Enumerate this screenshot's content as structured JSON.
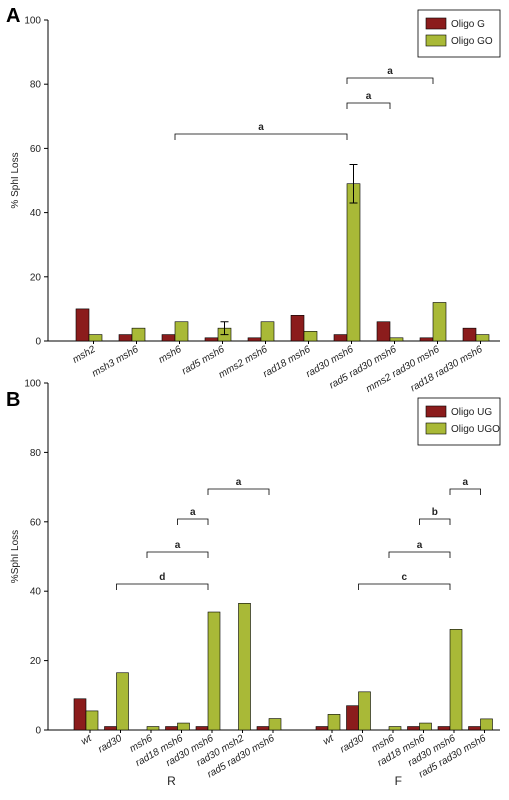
{
  "chart_data": [
    {
      "type": "bar",
      "panel_label": "A",
      "y_label": "% SphI Loss",
      "categories": [
        "msh2",
        "msh3 msh6",
        "msh6",
        "rad5 msh6",
        "mms2 msh6",
        "rad18 msh6",
        "rad30 msh6",
        "rad5 rad30 msh6",
        "mms2 rad30 msh6",
        "rad18 rad30 msh6"
      ],
      "series": [
        {
          "name": "Oligo G",
          "color": "#8b1c1c",
          "values": [
            10,
            2,
            2,
            1,
            1,
            8,
            2,
            6,
            1,
            4
          ]
        },
        {
          "name": "Oligo GO",
          "color": "#a9b937",
          "values": [
            2,
            4,
            6,
            4,
            6,
            3,
            49,
            1,
            12,
            2
          ],
          "errors": [
            null,
            null,
            null,
            2,
            null,
            null,
            6,
            null,
            null,
            null
          ]
        }
      ],
      "ylim": [
        0,
        100
      ],
      "yticks": [
        0,
        20,
        40,
        60,
        80,
        100
      ],
      "legend": "upper right",
      "annotations": [
        "a",
        "a",
        "a"
      ]
    },
    {
      "type": "bar",
      "panel_label": "B",
      "y_label": "%SphI Loss",
      "groups": [
        {
          "label": "R",
          "categories": [
            "wt",
            "rad30",
            "msh6",
            "rad18 msh6",
            "rad30 msh6",
            "rad30 msh2",
            "rad5 rad30 msh6"
          ]
        },
        {
          "label": "F",
          "categories": [
            "wt",
            "rad30",
            "msh6",
            "rad18 msh6",
            "rad30 msh6",
            "rad5 rad30 msh6"
          ]
        }
      ],
      "series": [
        {
          "name": "Oligo UG",
          "color": "#8b1c1c",
          "values": [
            9,
            1,
            0,
            1,
            1,
            0,
            1,
            1,
            7,
            0,
            1,
            1,
            1
          ]
        },
        {
          "name": "Oligo UGO",
          "color": "#a9b937",
          "values": [
            5.5,
            16.5,
            1,
            2,
            34,
            36.5,
            3.3,
            4.5,
            11,
            1,
            2,
            29,
            3.2
          ]
        }
      ],
      "ylim": [
        0,
        100
      ],
      "yticks": [
        0,
        20,
        40,
        60,
        80,
        100
      ],
      "legend": "upper right",
      "annotations": [
        "d",
        "a",
        "a",
        "a",
        "c",
        "a",
        "b",
        "a"
      ]
    }
  ]
}
